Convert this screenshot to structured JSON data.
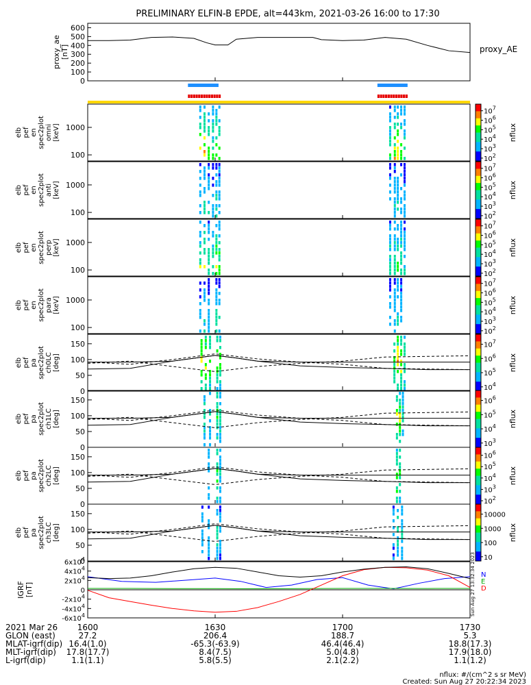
{
  "title": "PRELIMINARY ELFIN-B EPDE, alt=443km, 2021-03-26 16:00 to 17:30",
  "chart_data": [
    {
      "type": "line",
      "id": "proxy_ae",
      "ylabel": [
        "proxy_ae",
        "[nT]"
      ],
      "legend": "proxy_AE",
      "ylim": [
        0,
        650
      ],
      "yticks": [
        "0",
        "100",
        "200",
        "300",
        "400",
        "500",
        "600"
      ],
      "x": [
        0,
        5,
        10,
        15,
        20,
        25,
        28,
        30,
        33,
        35,
        40,
        45,
        50,
        53,
        55,
        60,
        65,
        70,
        75,
        80,
        85,
        90
      ],
      "values": [
        455,
        455,
        460,
        490,
        495,
        480,
        430,
        405,
        405,
        470,
        490,
        490,
        490,
        490,
        465,
        455,
        460,
        490,
        470,
        400,
        340,
        320
      ]
    },
    {
      "type": "segments",
      "id": "science_zones",
      "blue": [
        [
          23.6,
          30.8
        ],
        [
          68.2,
          75.3
        ]
      ],
      "red": [
        [
          23.6,
          31.2
        ],
        [
          68.2,
          75.3
        ]
      ],
      "yellow": [
        [
          0,
          90
        ]
      ]
    },
    {
      "type": "heatmap",
      "id": "en_omni",
      "ylabel": [
        "elb",
        "pef",
        "en",
        "spec2plot",
        "omni",
        "[keV]"
      ],
      "yscale": "log",
      "ylim": [
        60,
        7000
      ],
      "yticks": [
        "100",
        "1000"
      ],
      "colorbar": {
        "label": "nflux",
        "ticks": [
          "10^2",
          "10^3",
          "10^4",
          "10^5",
          "10^6",
          "10^7"
        ]
      },
      "events": [
        {
          "x": 26.5,
          "strength": 0.8
        },
        {
          "x": 27.5,
          "strength": 0.9
        },
        {
          "x": 28.5,
          "strength": 0.7
        },
        {
          "x": 29.5,
          "strength": 0.6
        },
        {
          "x": 30.3,
          "strength": 0.8
        },
        {
          "x": 31.0,
          "strength": 0.7
        },
        {
          "x": 71.2,
          "strength": 0.6
        },
        {
          "x": 72.3,
          "strength": 0.8
        },
        {
          "x": 73.0,
          "strength": 0.9
        },
        {
          "x": 73.8,
          "strength": 0.7
        },
        {
          "x": 74.6,
          "strength": 0.5
        }
      ]
    },
    {
      "type": "heatmap",
      "id": "en_anti",
      "ylabel": [
        "elb",
        "pef",
        "en",
        "spec2plot",
        "anti",
        "[keV]"
      ],
      "yscale": "log",
      "ylim": [
        60,
        7000
      ],
      "yticks": [
        "100",
        "1000"
      ],
      "colorbar": {
        "label": "nflux",
        "ticks": [
          "10^2",
          "10^3",
          "10^4",
          "10^5",
          "10^6",
          "10^7"
        ]
      },
      "events": [
        {
          "x": 26.5,
          "strength": 0.4
        },
        {
          "x": 27.5,
          "strength": 0.5
        },
        {
          "x": 28.5,
          "strength": 0.4
        },
        {
          "x": 29.5,
          "strength": 0.3
        },
        {
          "x": 30.3,
          "strength": 0.5
        },
        {
          "x": 31.0,
          "strength": 0.4
        },
        {
          "x": 71.2,
          "strength": 0.3
        },
        {
          "x": 72.3,
          "strength": 0.4
        },
        {
          "x": 73.0,
          "strength": 0.5
        },
        {
          "x": 73.8,
          "strength": 0.4
        },
        {
          "x": 74.6,
          "strength": 0.3
        }
      ]
    },
    {
      "type": "heatmap",
      "id": "en_perp",
      "ylabel": [
        "elb",
        "pef",
        "en",
        "spec2plot",
        "perp",
        "[keV]"
      ],
      "yscale": "log",
      "ylim": [
        60,
        7000
      ],
      "yticks": [
        "100",
        "1000"
      ],
      "colorbar": {
        "label": "nflux",
        "ticks": [
          "10^2",
          "10^3",
          "10^4",
          "10^5",
          "10^6",
          "10^7"
        ]
      },
      "events": [
        {
          "x": 26.5,
          "strength": 0.7
        },
        {
          "x": 27.5,
          "strength": 0.8
        },
        {
          "x": 28.5,
          "strength": 0.6
        },
        {
          "x": 29.5,
          "strength": 0.6
        },
        {
          "x": 30.3,
          "strength": 0.8
        },
        {
          "x": 31.0,
          "strength": 0.7
        },
        {
          "x": 71.2,
          "strength": 0.5
        },
        {
          "x": 72.3,
          "strength": 0.6
        },
        {
          "x": 73.0,
          "strength": 0.7
        },
        {
          "x": 73.8,
          "strength": 0.6
        },
        {
          "x": 74.6,
          "strength": 0.4
        }
      ]
    },
    {
      "type": "heatmap",
      "id": "en_para",
      "ylabel": [
        "elb",
        "pef",
        "en",
        "spec2plot",
        "para",
        "[keV]"
      ],
      "yscale": "log",
      "ylim": [
        60,
        7000
      ],
      "yticks": [
        "100",
        "1000"
      ],
      "colorbar": {
        "label": "nflux",
        "ticks": [
          "10^2",
          "10^3",
          "10^4",
          "10^5",
          "10^6",
          "10^7"
        ]
      },
      "events": [
        {
          "x": 26.5,
          "strength": 0.3
        },
        {
          "x": 27.5,
          "strength": 0.4
        },
        {
          "x": 28.5,
          "strength": 0.3
        },
        {
          "x": 30.3,
          "strength": 0.5
        },
        {
          "x": 31.0,
          "strength": 0.4
        },
        {
          "x": 71.2,
          "strength": 0.3
        },
        {
          "x": 72.3,
          "strength": 0.4
        },
        {
          "x": 73.0,
          "strength": 0.5
        },
        {
          "x": 73.8,
          "strength": 0.4
        }
      ]
    },
    {
      "type": "heatmap",
      "id": "pa_ch0",
      "ylabel": [
        "elb",
        "pef",
        "pa",
        "spec2plot",
        "ch0LC",
        "[deg]"
      ],
      "ylim": [
        0,
        180
      ],
      "yticks": [
        "0",
        "50",
        "100",
        "150"
      ],
      "colorbar": {
        "label": "nflux",
        "ticks": [
          "10^4",
          "10^5",
          "10^6",
          "10^7"
        ]
      },
      "events": [
        {
          "x": 26.8,
          "strength": 0.9
        },
        {
          "x": 27.8,
          "strength": 0.8
        },
        {
          "x": 28.8,
          "strength": 0.7
        },
        {
          "x": 30.5,
          "strength": 0.7
        },
        {
          "x": 31.2,
          "strength": 0.6
        },
        {
          "x": 72.2,
          "strength": 0.7
        },
        {
          "x": 73.0,
          "strength": 0.9
        },
        {
          "x": 73.8,
          "strength": 0.8
        },
        {
          "x": 74.6,
          "strength": 0.6
        }
      ]
    },
    {
      "type": "heatmap",
      "id": "pa_ch1",
      "ylabel": [
        "elb",
        "pef",
        "pa",
        "spec2plot",
        "ch1LC",
        "[deg]"
      ],
      "ylim": [
        0,
        180
      ],
      "yticks": [
        "0",
        "50",
        "100",
        "150"
      ],
      "colorbar": {
        "label": "nflux",
        "ticks": [
          "10^3",
          "10^4",
          "10^5",
          "10^6"
        ]
      },
      "events": [
        {
          "x": 27.5,
          "strength": 0.5
        },
        {
          "x": 28.8,
          "strength": 0.4
        },
        {
          "x": 30.5,
          "strength": 0.6
        },
        {
          "x": 31.2,
          "strength": 0.5
        },
        {
          "x": 72.8,
          "strength": 0.8
        },
        {
          "x": 73.5,
          "strength": 0.7
        },
        {
          "x": 74.2,
          "strength": 0.5
        }
      ]
    },
    {
      "type": "heatmap",
      "id": "pa_ch2",
      "ylabel": [
        "elb",
        "pef",
        "pa",
        "spec2plot",
        "ch2LC",
        "[deg]"
      ],
      "ylim": [
        0,
        180
      ],
      "yticks": [
        "0",
        "50",
        "100",
        "150"
      ],
      "colorbar": {
        "label": "nflux",
        "ticks": [
          "10^2",
          "10^3",
          "10^4",
          "10^5",
          "10^6"
        ]
      },
      "events": [
        {
          "x": 28.5,
          "strength": 0.4
        },
        {
          "x": 30.5,
          "strength": 0.6
        },
        {
          "x": 31.2,
          "strength": 0.4
        },
        {
          "x": 72.8,
          "strength": 0.7
        },
        {
          "x": 73.5,
          "strength": 0.6
        }
      ]
    },
    {
      "type": "heatmap",
      "id": "pa_ch3",
      "ylabel": [
        "elb",
        "pef",
        "pa",
        "spec2plot",
        "ch3LC",
        "[deg]"
      ],
      "ylim": [
        0,
        180
      ],
      "yticks": [
        "0",
        "50",
        "100",
        "150"
      ],
      "colorbar": {
        "label": "nflux",
        "ticks": [
          "10",
          "100",
          "1000",
          "10000"
        ]
      },
      "events": [
        {
          "x": 27.0,
          "strength": 0.3
        },
        {
          "x": 28.5,
          "strength": 0.3
        },
        {
          "x": 30.5,
          "strength": 0.5
        },
        {
          "x": 31.2,
          "strength": 0.3
        },
        {
          "x": 72.0,
          "strength": 0.3
        },
        {
          "x": 73.0,
          "strength": 0.5
        },
        {
          "x": 74.0,
          "strength": 0.4
        }
      ]
    },
    {
      "type": "line",
      "id": "igrf",
      "ylabel": [
        "IGRF",
        "[nT]"
      ],
      "ylim": [
        -60000,
        60000
      ],
      "yticks": [
        "-6x10^4",
        "-4x10^4",
        "-2x10^4",
        "0",
        "2x10^4",
        "4x10^4",
        "6x10^4"
      ],
      "legend": [
        "N",
        "E",
        "D"
      ],
      "side_text": "Sun Aug 27 13:32:34 2023",
      "series": [
        {
          "name": "N",
          "color": "#0000ff",
          "x": [
            0,
            8,
            16,
            24,
            30,
            36,
            42,
            48,
            54,
            60,
            66,
            72,
            78,
            84,
            90
          ],
          "values": [
            28000,
            18000,
            16000,
            21000,
            25000,
            18000,
            5000,
            10000,
            22000,
            26000,
            10000,
            2000,
            14000,
            24000,
            28000
          ]
        },
        {
          "name": "E",
          "color": "#00aa00",
          "x": [
            0,
            10,
            20,
            30,
            40,
            50,
            60,
            70,
            80,
            90
          ],
          "values": [
            3000,
            3000,
            2500,
            2500,
            2200,
            2500,
            3000,
            3000,
            2800,
            3000
          ]
        },
        {
          "name": "D",
          "color": "#ff0000",
          "x": [
            0,
            5,
            10,
            15,
            20,
            25,
            30,
            35,
            40,
            45,
            50,
            55,
            60,
            65,
            70,
            75,
            80,
            85,
            90
          ],
          "values": [
            -1000,
            -17000,
            -25000,
            -33000,
            -40000,
            -45000,
            -48000,
            -46000,
            -38000,
            -25000,
            -10000,
            10000,
            30000,
            43000,
            48000,
            47000,
            42000,
            30000,
            5000
          ]
        },
        {
          "name": "total",
          "color": "#000000",
          "x": [
            0,
            5,
            10,
            15,
            20,
            25,
            30,
            35,
            40,
            45,
            50,
            55,
            60,
            65,
            70,
            75,
            80,
            85,
            90
          ],
          "values": [
            26000,
            24000,
            25000,
            30000,
            38000,
            45000,
            48000,
            46000,
            38000,
            30000,
            27000,
            30000,
            38000,
            44000,
            48000,
            49000,
            45000,
            35000,
            24000
          ]
        }
      ]
    }
  ],
  "x_axis": {
    "ticks": [
      {
        "pos": 0,
        "label": "1600"
      },
      {
        "pos": 30,
        "label": "1630"
      },
      {
        "pos": 60,
        "label": "1700"
      },
      {
        "pos": 90,
        "label": "1730"
      }
    ]
  },
  "footer_rows": [
    {
      "label": "2021 Mar 26",
      "values": [
        "1600",
        "1630",
        "1700",
        "1730"
      ]
    },
    {
      "label": "GLON (east)",
      "values": [
        "27.2",
        "206.4",
        "188.7",
        "5.3"
      ]
    },
    {
      "label": "MLAT-igrf(dip)",
      "values": [
        "16.4(1.0)",
        "-65.3(-63.9)",
        "46.4(46.4)",
        "18.8(17.3)"
      ]
    },
    {
      "label": "MLT-igrf(dip)",
      "values": [
        "17.8(17.7)",
        "8.4(7.5)",
        "5.0(4.8)",
        "17.9(18.0)"
      ]
    },
    {
      "label": "L-igrf(dip)",
      "values": [
        "1.1(1.1)",
        "5.8(5.5)",
        "2.1(2.2)",
        "1.1(1.2)"
      ]
    }
  ],
  "footnote": "nflux: #/(cm^2 s sr MeV)",
  "created": "Created: Sun Aug 27 20:22:34 2023"
}
